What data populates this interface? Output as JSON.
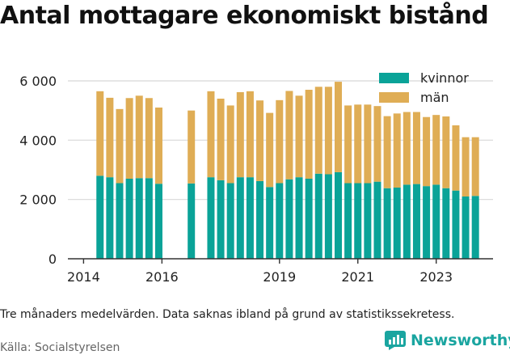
{
  "title": "Antal mottagare ekonomiskt bistånd",
  "note": "Tre månaders medelvärden. Data saknas ibland på grund av statistikssekretess.",
  "source": "Källa: Socialstyrelsen",
  "brand": {
    "name": "Newsworthy",
    "icon": "newsworthy-logo-icon"
  },
  "colors": {
    "kvinnor": "#0aa398",
    "man": "#dfad55",
    "grid": "#d8d8d8",
    "axis": "#333333"
  },
  "chart_data": {
    "type": "bar",
    "stacked": true,
    "title": "Antal mottagare ekonomiskt bistånd",
    "xlabel": "",
    "ylabel": "",
    "ylim": [
      0,
      6000
    ],
    "yticks": [
      {
        "value": 0,
        "label": "0"
      },
      {
        "value": 2000,
        "label": "2 000"
      },
      {
        "value": 4000,
        "label": "4 000"
      },
      {
        "value": 6000,
        "label": "6 000"
      }
    ],
    "xlim": [
      2013.6,
      2024.45
    ],
    "xticks": [
      {
        "value": 2014,
        "label": "2014"
      },
      {
        "value": 2016,
        "label": "2016"
      },
      {
        "value": 2019,
        "label": "2019"
      },
      {
        "value": 2021,
        "label": "2021"
      },
      {
        "value": 2023,
        "label": "2023"
      }
    ],
    "legend": "top-right",
    "grid": true,
    "x": [
      2014.42,
      2014.67,
      2014.92,
      2015.17,
      2015.42,
      2015.67,
      2015.92,
      2016.75,
      2017.25,
      2017.5,
      2017.75,
      2018.0,
      2018.25,
      2018.5,
      2018.75,
      2019.0,
      2019.25,
      2019.5,
      2019.75,
      2020.0,
      2020.25,
      2020.5,
      2020.75,
      2021.0,
      2021.25,
      2021.5,
      2021.75,
      2022.0,
      2022.25,
      2022.5,
      2022.75,
      2023.0,
      2023.25,
      2023.5,
      2023.75,
      2024.0
    ],
    "series": [
      {
        "name": "kvinnor",
        "values": [
          2800,
          2750,
          2550,
          2700,
          2720,
          2720,
          2530,
          2540,
          2750,
          2650,
          2550,
          2750,
          2750,
          2620,
          2420,
          2550,
          2680,
          2750,
          2700,
          2870,
          2850,
          2920,
          2550,
          2550,
          2550,
          2600,
          2380,
          2400,
          2500,
          2520,
          2450,
          2500,
          2380,
          2300,
          2100,
          2120
        ]
      },
      {
        "name": "män",
        "values": [
          2850,
          2680,
          2500,
          2720,
          2780,
          2700,
          2570,
          2460,
          2900,
          2750,
          2620,
          2870,
          2900,
          2720,
          2500,
          2800,
          2980,
          2750,
          3000,
          2930,
          2950,
          3050,
          2620,
          2650,
          2650,
          2550,
          2430,
          2500,
          2450,
          2430,
          2330,
          2350,
          2420,
          2200,
          2000,
          1980
        ]
      }
    ]
  }
}
